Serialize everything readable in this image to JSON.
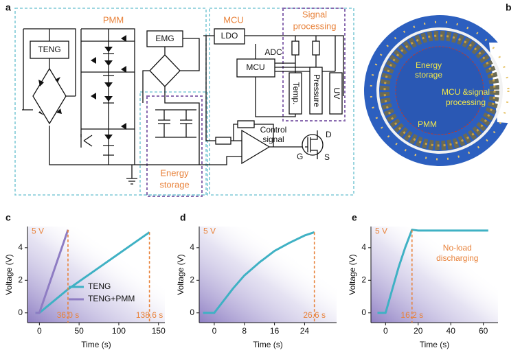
{
  "panels": [
    "a",
    "b",
    "c",
    "d",
    "e"
  ],
  "diagram": {
    "groups": [
      "PMM",
      "MCU",
      "Signal",
      "processing",
      "Energy",
      "storage"
    ],
    "blocks": [
      "TENG",
      "EMG",
      "LDO",
      "ADC",
      "MCU",
      "Temp.",
      "Pressure",
      "UV"
    ],
    "control": [
      "Control",
      "signal"
    ],
    "pins": [
      "D",
      "G",
      "S"
    ]
  },
  "photo": {
    "labels": [
      "Energy",
      "storage",
      "MCU &signal",
      "processing",
      "PMM"
    ]
  },
  "chart_data": [
    {
      "type": "line",
      "x_label": "Time (s)",
      "y_label": "Voltage (V)",
      "xlim": [
        -15,
        158
      ],
      "ylim": [
        -0.6,
        5.3
      ],
      "xticks": [
        0,
        50,
        100,
        150
      ],
      "yticks": [
        0,
        2,
        4
      ],
      "legend": "lower center",
      "series": [
        {
          "name": "TENG",
          "color": "#3fb1c4",
          "x": [
            -5,
            0,
            36,
            80,
            138.6
          ],
          "values": [
            0,
            0,
            1.45,
            2.95,
            4.95
          ]
        },
        {
          "name": "TENG+PMM",
          "color": "#8e7cc3",
          "x": [
            -5,
            0,
            36
          ],
          "values": [
            0,
            0,
            5.1
          ]
        }
      ],
      "level_label": {
        "value": 5,
        "label": "5 V"
      },
      "vlines": [
        {
          "value": 36.0,
          "label": "36.0 s"
        },
        {
          "value": 138.6,
          "label": "138.6 s"
        }
      ]
    },
    {
      "type": "line",
      "x_label": "Time (s)",
      "y_label": "Voltage (V)",
      "xlim": [
        -4,
        32.5
      ],
      "ylim": [
        -0.6,
        5.3
      ],
      "xticks": [
        0,
        8,
        16,
        24
      ],
      "yticks": [
        0,
        2,
        4
      ],
      "series": [
        {
          "color": "#3fb1c4",
          "x": [
            -3,
            0,
            2,
            5,
            8,
            12,
            16,
            20,
            24,
            26.6
          ],
          "values": [
            0,
            0,
            0.6,
            1.5,
            2.3,
            3.1,
            3.8,
            4.3,
            4.75,
            4.95
          ]
        }
      ],
      "level_label": {
        "value": 5,
        "label": "5 V"
      },
      "vlines": [
        {
          "value": 26.6,
          "label": "26.6 s"
        }
      ]
    },
    {
      "type": "line",
      "x_label": "Time (s)",
      "y_label": "Voltage (V)",
      "xlim": [
        -9,
        69
      ],
      "ylim": [
        -0.6,
        5.3
      ],
      "xticks": [
        0,
        20,
        40,
        60
      ],
      "yticks": [
        0,
        2,
        4
      ],
      "series": [
        {
          "color": "#3fb1c4",
          "x": [
            -5,
            0,
            4,
            8,
            12,
            16.2,
            20,
            30,
            40,
            50,
            63
          ],
          "values": [
            0,
            0,
            1.4,
            2.8,
            4.0,
            5.1,
            5.05,
            5.05,
            5.05,
            5.05,
            5.05
          ]
        }
      ],
      "level_label": {
        "value": 5,
        "label": "5 V"
      },
      "vlines": [
        {
          "value": 16.2,
          "label": "16.2 s"
        }
      ],
      "note_lines": [
        "No-load",
        "discharging"
      ]
    }
  ]
}
